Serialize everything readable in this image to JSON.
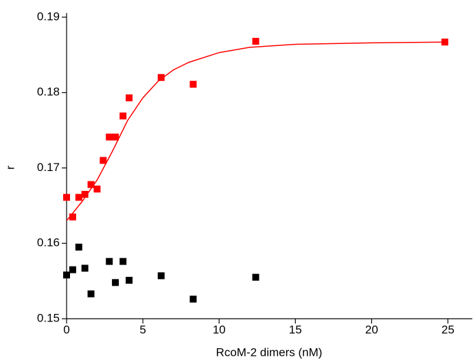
{
  "chart_data": {
    "type": "scatter",
    "x_label": "RcoM-2 dimers (nM)",
    "y_label": "r",
    "xlim": [
      0,
      26.6
    ],
    "ylim": [
      0.15,
      0.19
    ],
    "xticks": [
      0,
      5,
      10,
      15,
      20,
      25
    ],
    "yticks": [
      0.15,
      0.16,
      0.17,
      0.18,
      0.19
    ],
    "series": [
      {
        "color": "#ff0000",
        "marker": "square",
        "x": [
          0,
          0.4,
          0.8,
          1.2,
          1.6,
          2.0,
          2.4,
          2.8,
          3.2,
          3.7,
          4.1,
          6.2,
          8.3,
          12.4,
          24.8
        ],
        "values": [
          0.1661,
          0.1635,
          0.1661,
          0.1665,
          0.1678,
          0.1672,
          0.171,
          0.1741,
          0.1741,
          0.1769,
          0.1793,
          0.182,
          0.1811,
          0.1868,
          0.1867
        ]
      },
      {
        "color": "#000000",
        "marker": "square",
        "x": [
          0,
          0.4,
          0.8,
          1.2,
          1.6,
          2.8,
          3.2,
          3.7,
          4.1,
          6.2,
          8.3,
          12.4
        ],
        "values": [
          0.1558,
          0.1565,
          0.1595,
          0.1567,
          0.1533,
          0.1576,
          0.1548,
          0.1576,
          0.1551,
          0.1557,
          0.1526,
          0.1555
        ]
      },
      {
        "color": "#ff0000",
        "marker": "line",
        "x": [
          0,
          1,
          2,
          3,
          4,
          5,
          6,
          7,
          8,
          10,
          12,
          15,
          20,
          25
        ],
        "values": [
          0.163,
          0.1655,
          0.1684,
          0.1722,
          0.1763,
          0.1793,
          0.1815,
          0.183,
          0.184,
          0.1853,
          0.186,
          0.1864,
          0.1866,
          0.1867
        ]
      }
    ]
  }
}
